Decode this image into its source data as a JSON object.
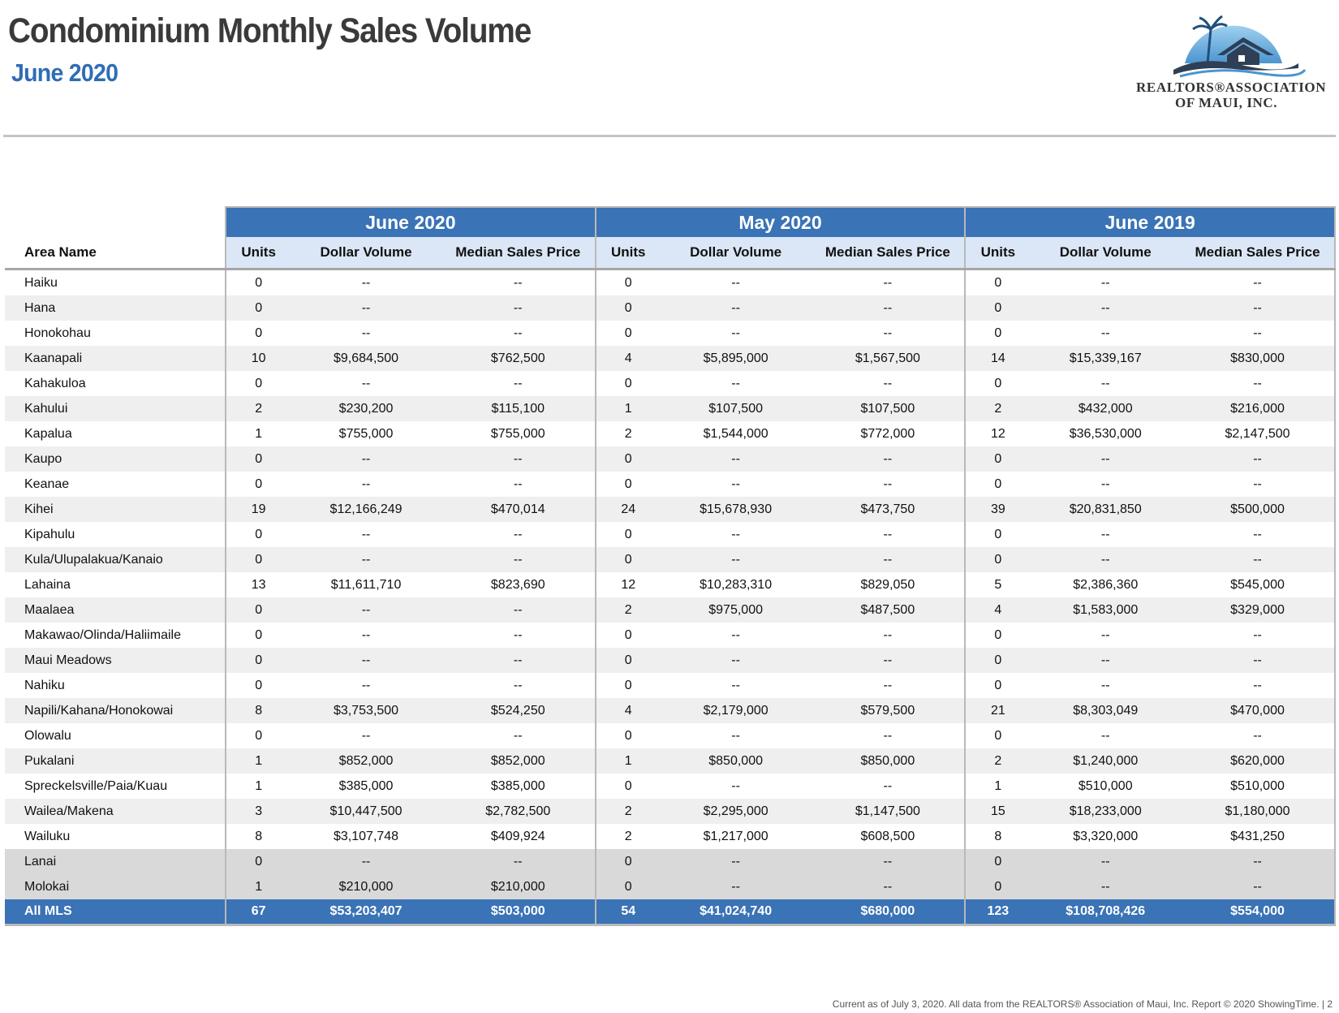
{
  "header": {
    "title": "Condominium Monthly Sales Volume",
    "subtitle": "June 2020",
    "logo_line1": "REALTORS®ASSOCIATION",
    "logo_line2": "OF MAUI, INC."
  },
  "table": {
    "groups": [
      "June 2020",
      "May 2020",
      "June 2019"
    ],
    "area_header": "Area Name",
    "columns": [
      "Units",
      "Dollar Volume",
      "Median Sales Price"
    ],
    "rows": [
      {
        "area": "Haiku",
        "style": "plain",
        "v": [
          "0",
          "--",
          "--",
          "0",
          "--",
          "--",
          "0",
          "--",
          "--"
        ]
      },
      {
        "area": "Hana",
        "style": "shade",
        "v": [
          "0",
          "--",
          "--",
          "0",
          "--",
          "--",
          "0",
          "--",
          "--"
        ]
      },
      {
        "area": "Honokohau",
        "style": "plain",
        "v": [
          "0",
          "--",
          "--",
          "0",
          "--",
          "--",
          "0",
          "--",
          "--"
        ]
      },
      {
        "area": "Kaanapali",
        "style": "shade",
        "v": [
          "10",
          "$9,684,500",
          "$762,500",
          "4",
          "$5,895,000",
          "$1,567,500",
          "14",
          "$15,339,167",
          "$830,000"
        ]
      },
      {
        "area": "Kahakuloa",
        "style": "plain",
        "v": [
          "0",
          "--",
          "--",
          "0",
          "--",
          "--",
          "0",
          "--",
          "--"
        ]
      },
      {
        "area": "Kahului",
        "style": "shade",
        "v": [
          "2",
          "$230,200",
          "$115,100",
          "1",
          "$107,500",
          "$107,500",
          "2",
          "$432,000",
          "$216,000"
        ]
      },
      {
        "area": "Kapalua",
        "style": "plain",
        "v": [
          "1",
          "$755,000",
          "$755,000",
          "2",
          "$1,544,000",
          "$772,000",
          "12",
          "$36,530,000",
          "$2,147,500"
        ]
      },
      {
        "area": "Kaupo",
        "style": "shade",
        "v": [
          "0",
          "--",
          "--",
          "0",
          "--",
          "--",
          "0",
          "--",
          "--"
        ]
      },
      {
        "area": "Keanae",
        "style": "plain",
        "v": [
          "0",
          "--",
          "--",
          "0",
          "--",
          "--",
          "0",
          "--",
          "--"
        ]
      },
      {
        "area": "Kihei",
        "style": "shade",
        "v": [
          "19",
          "$12,166,249",
          "$470,014",
          "24",
          "$15,678,930",
          "$473,750",
          "39",
          "$20,831,850",
          "$500,000"
        ]
      },
      {
        "area": "Kipahulu",
        "style": "plain",
        "v": [
          "0",
          "--",
          "--",
          "0",
          "--",
          "--",
          "0",
          "--",
          "--"
        ]
      },
      {
        "area": "Kula/Ulupalakua/Kanaio",
        "style": "shade",
        "v": [
          "0",
          "--",
          "--",
          "0",
          "--",
          "--",
          "0",
          "--",
          "--"
        ]
      },
      {
        "area": "Lahaina",
        "style": "plain",
        "v": [
          "13",
          "$11,611,710",
          "$823,690",
          "12",
          "$10,283,310",
          "$829,050",
          "5",
          "$2,386,360",
          "$545,000"
        ]
      },
      {
        "area": "Maalaea",
        "style": "shade",
        "v": [
          "0",
          "--",
          "--",
          "2",
          "$975,000",
          "$487,500",
          "4",
          "$1,583,000",
          "$329,000"
        ]
      },
      {
        "area": "Makawao/Olinda/Haliimaile",
        "style": "plain",
        "v": [
          "0",
          "--",
          "--",
          "0",
          "--",
          "--",
          "0",
          "--",
          "--"
        ]
      },
      {
        "area": "Maui Meadows",
        "style": "shade",
        "v": [
          "0",
          "--",
          "--",
          "0",
          "--",
          "--",
          "0",
          "--",
          "--"
        ]
      },
      {
        "area": "Nahiku",
        "style": "plain",
        "v": [
          "0",
          "--",
          "--",
          "0",
          "--",
          "--",
          "0",
          "--",
          "--"
        ]
      },
      {
        "area": "Napili/Kahana/Honokowai",
        "style": "shade",
        "v": [
          "8",
          "$3,753,500",
          "$524,250",
          "4",
          "$2,179,000",
          "$579,500",
          "21",
          "$8,303,049",
          "$470,000"
        ]
      },
      {
        "area": "Olowalu",
        "style": "plain",
        "v": [
          "0",
          "--",
          "--",
          "0",
          "--",
          "--",
          "0",
          "--",
          "--"
        ]
      },
      {
        "area": "Pukalani",
        "style": "shade",
        "v": [
          "1",
          "$852,000",
          "$852,000",
          "1",
          "$850,000",
          "$850,000",
          "2",
          "$1,240,000",
          "$620,000"
        ]
      },
      {
        "area": "Spreckelsville/Paia/Kuau",
        "style": "plain",
        "v": [
          "1",
          "$385,000",
          "$385,000",
          "0",
          "--",
          "--",
          "1",
          "$510,000",
          "$510,000"
        ]
      },
      {
        "area": "Wailea/Makena",
        "style": "shade",
        "v": [
          "3",
          "$10,447,500",
          "$2,782,500",
          "2",
          "$2,295,000",
          "$1,147,500",
          "15",
          "$18,233,000",
          "$1,180,000"
        ]
      },
      {
        "area": "Wailuku",
        "style": "plain",
        "v": [
          "8",
          "$3,107,748",
          "$409,924",
          "2",
          "$1,217,000",
          "$608,500",
          "8",
          "$3,320,000",
          "$431,250"
        ]
      },
      {
        "area": "Lanai",
        "style": "gray",
        "v": [
          "0",
          "--",
          "--",
          "0",
          "--",
          "--",
          "0",
          "--",
          "--"
        ]
      },
      {
        "area": "Molokai",
        "style": "gray",
        "v": [
          "1",
          "$210,000",
          "$210,000",
          "0",
          "--",
          "--",
          "0",
          "--",
          "--"
        ]
      },
      {
        "area": "All MLS",
        "style": "total",
        "v": [
          "67",
          "$53,203,407",
          "$503,000",
          "54",
          "$41,024,740",
          "$680,000",
          "123",
          "$108,708,426",
          "$554,000"
        ]
      }
    ]
  },
  "footer": {
    "text": "Current as of July 3, 2020. All data from the REALTORS® Association of Maui, Inc. Report © 2020 ShowingTime.  |  2"
  }
}
